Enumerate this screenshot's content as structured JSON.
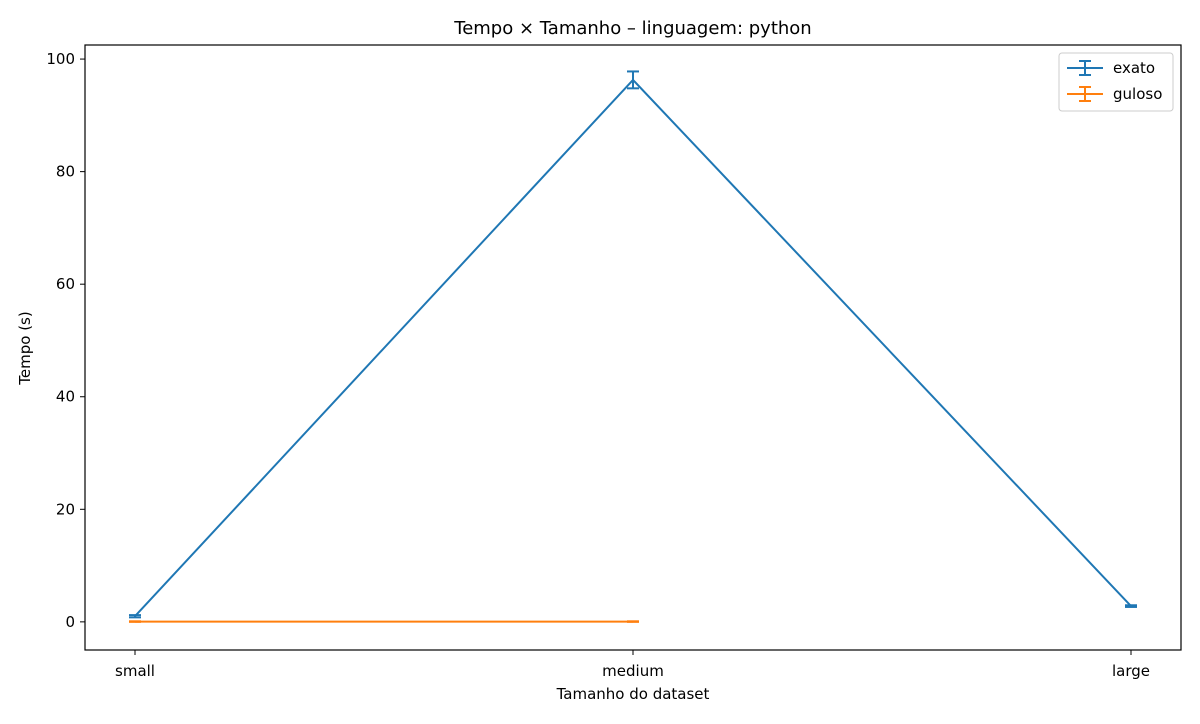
{
  "chart_data": {
    "type": "line",
    "title": "Tempo × Tamanho – linguagem: python",
    "xlabel": "Tamanho do dataset",
    "ylabel": "Tempo (s)",
    "categories": [
      "small",
      "medium",
      "large"
    ],
    "ylim": [
      -5,
      102.5
    ],
    "yticks": [
      0,
      20,
      40,
      60,
      80,
      100
    ],
    "grid": false,
    "legend_position": "top-right",
    "series": [
      {
        "name": "exato",
        "color": "#1f77b4",
        "values": [
          1.0,
          96.3,
          2.8
        ],
        "errors": [
          0.2,
          1.5,
          0.15
        ]
      },
      {
        "name": "guloso",
        "color": "#ff7f0e",
        "values": [
          0.05,
          0.05,
          null
        ],
        "errors": [
          0.05,
          0.05,
          null
        ]
      }
    ]
  }
}
